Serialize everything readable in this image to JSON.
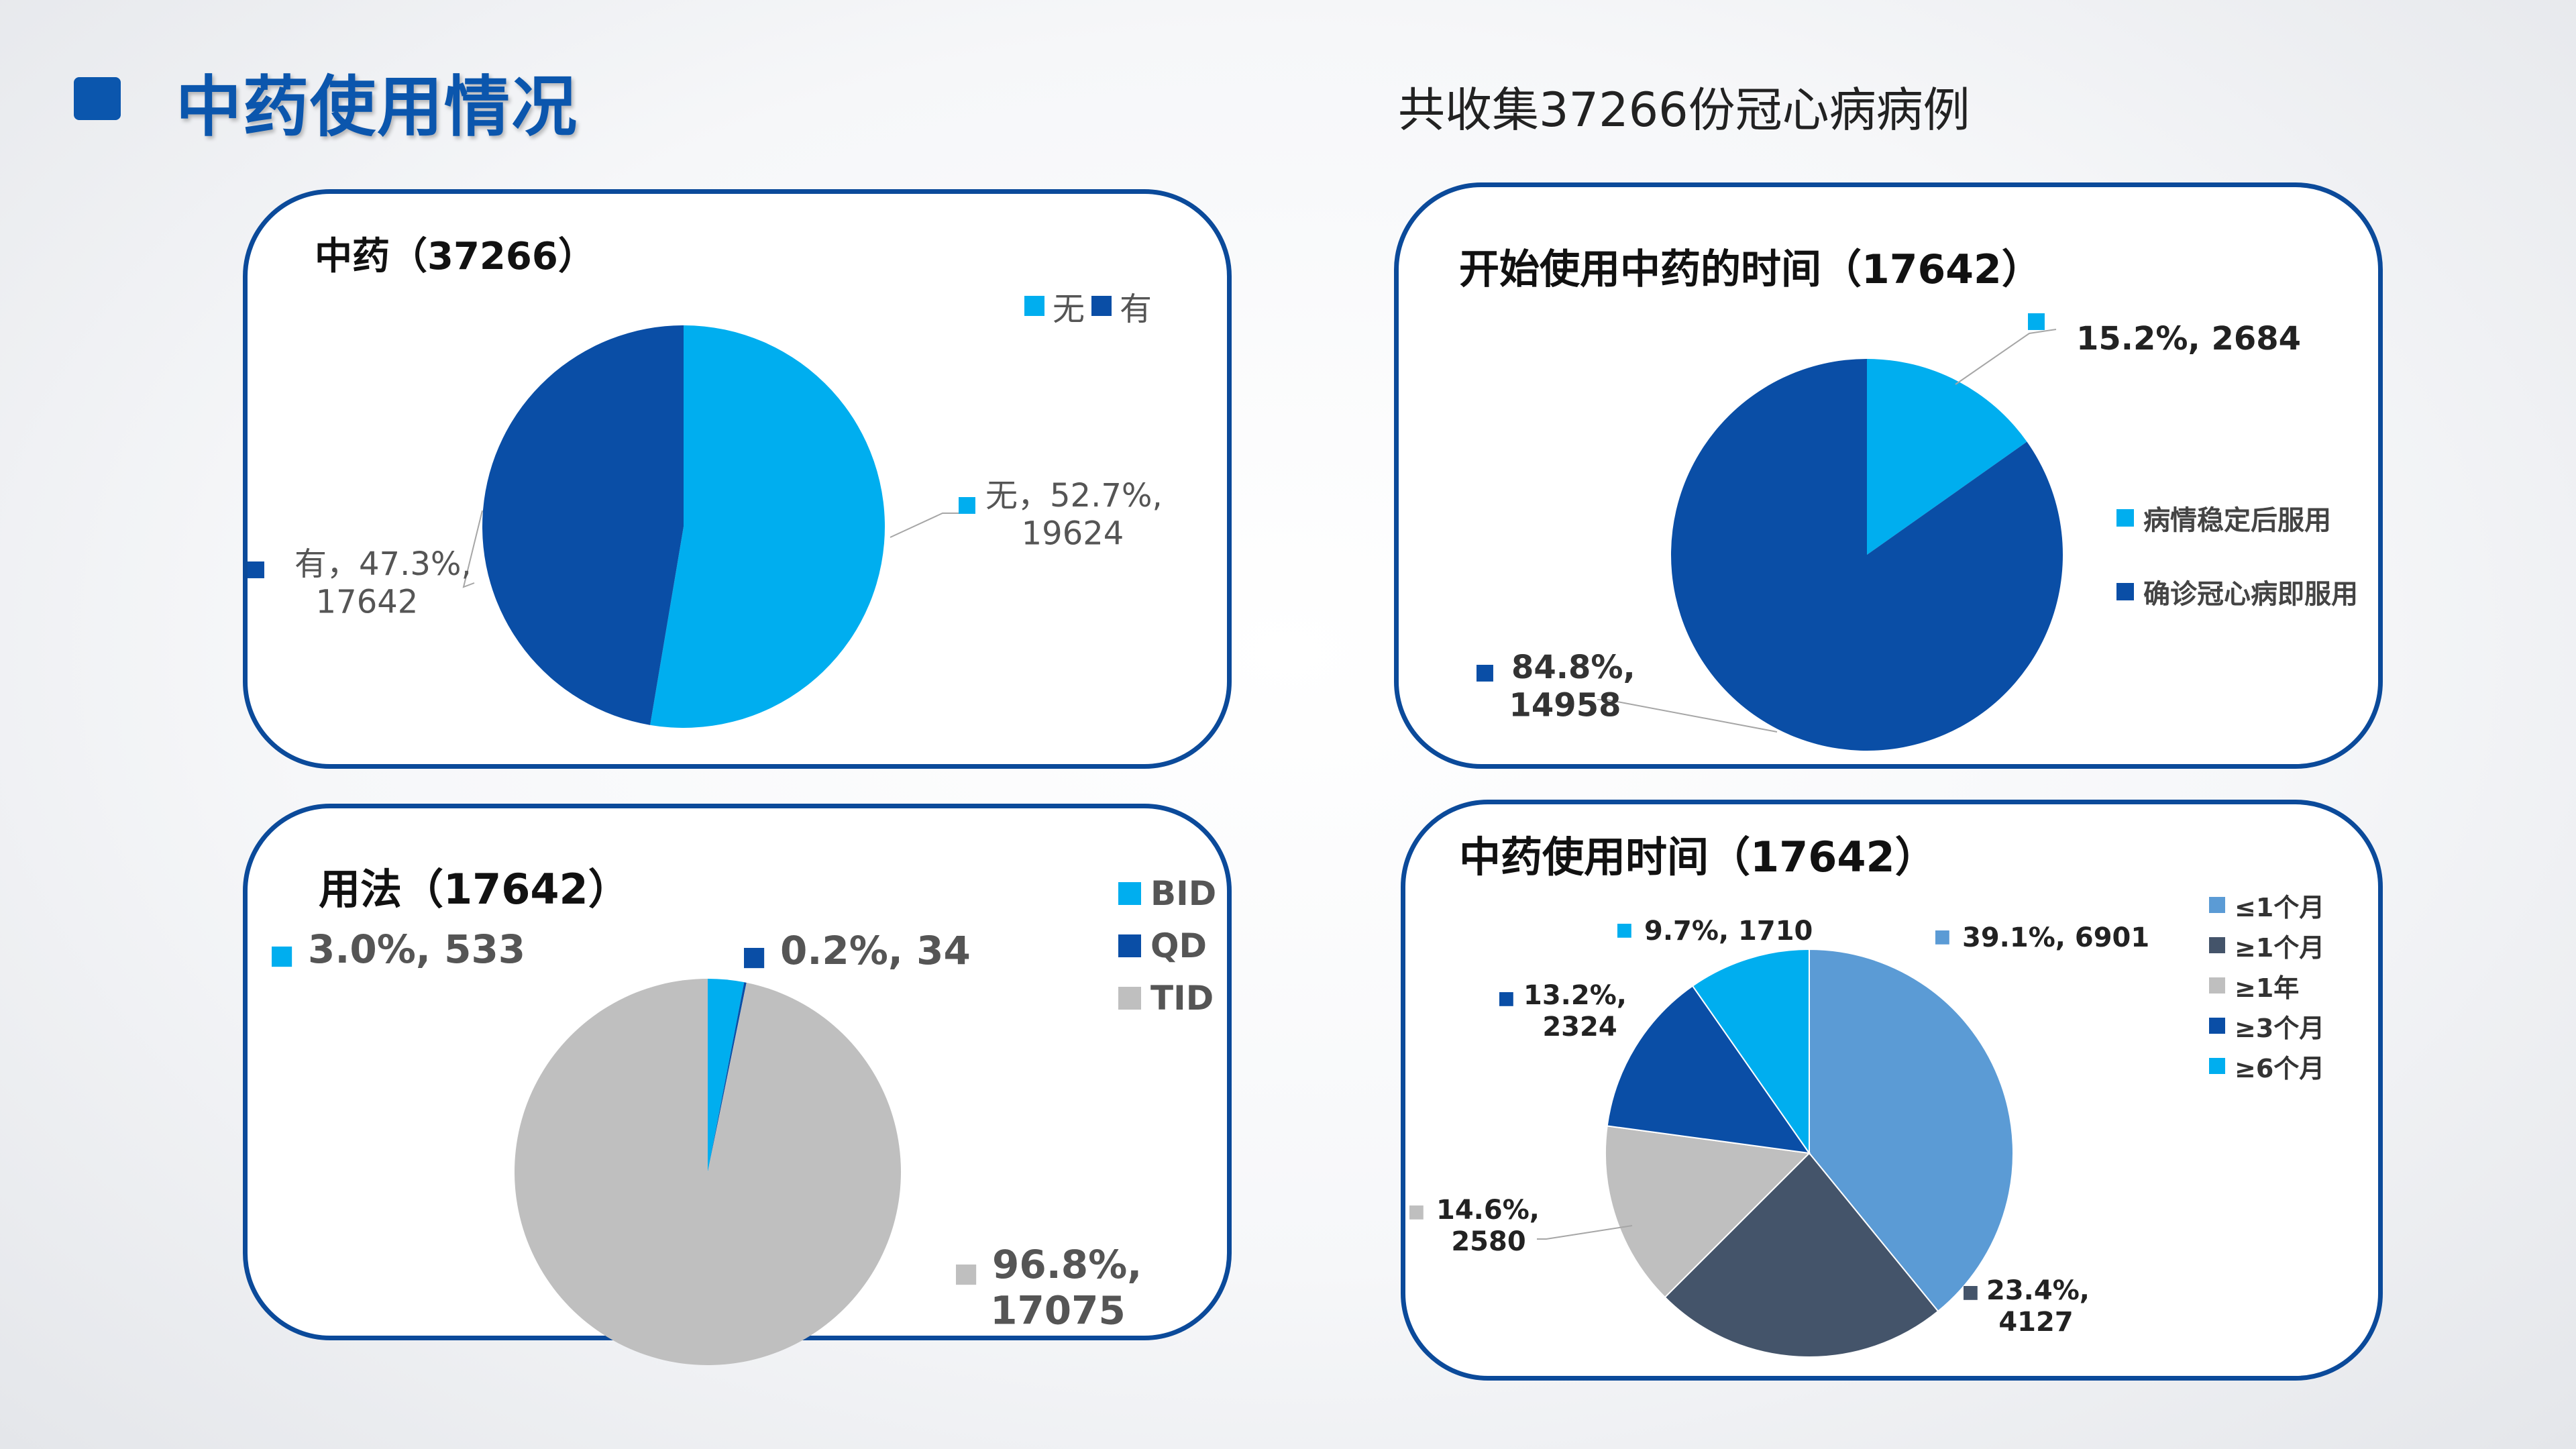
{
  "page": {
    "title": "中药使用情况",
    "subtitle": "共收集37266份冠心病病例"
  },
  "colors": {
    "accent": "#0b56ad",
    "border": "#0b4a9a",
    "light_blue": "#00aeef",
    "dark_blue": "#0a4ea6",
    "gray": "#bfbfbf",
    "steel_blue": "#5b9bd5",
    "slate": "#44546a"
  },
  "chart_data": [
    {
      "type": "pie",
      "title": "中药（37266）",
      "legend": {
        "placement": "top-right",
        "entries": [
          "无",
          "有"
        ]
      },
      "slices": [
        {
          "name": "无",
          "value": 19624,
          "percent": 52.7,
          "color": "#00aeef",
          "label": [
            "无，52.7%,",
            "19624"
          ]
        },
        {
          "name": "有",
          "value": 17642,
          "percent": 47.3,
          "color": "#0a4ea6",
          "label": [
            "有，47.3%,",
            "17642"
          ]
        }
      ]
    },
    {
      "type": "pie",
      "title": "开始使用中药的时间（17642）",
      "legend": {
        "placement": "right",
        "entries": [
          "病情稳定后服用",
          "确诊冠心病即服用"
        ]
      },
      "slices": [
        {
          "name": "病情稳定后服用",
          "value": 2684,
          "percent": 15.2,
          "color": "#00aeef",
          "label": [
            "15.2%, 2684"
          ]
        },
        {
          "name": "确诊冠心病即服用",
          "value": 14958,
          "percent": 84.8,
          "color": "#0a4ea6",
          "label": [
            "84.8%,",
            "14958"
          ]
        }
      ]
    },
    {
      "type": "pie",
      "title": "用法（17642）",
      "legend": {
        "placement": "top-right",
        "entries": [
          "BID",
          "QD",
          "TID"
        ]
      },
      "slices": [
        {
          "name": "BID",
          "value": 533,
          "percent": 3.0,
          "color": "#00aeef",
          "label": [
            "3.0%, 533"
          ]
        },
        {
          "name": "QD",
          "value": 34,
          "percent": 0.2,
          "color": "#0a4ea6",
          "label": [
            "0.2%, 34"
          ]
        },
        {
          "name": "TID",
          "value": 17075,
          "percent": 96.8,
          "color": "#bfbfbf",
          "label": [
            "96.8%,",
            "17075"
          ]
        }
      ]
    },
    {
      "type": "pie",
      "title": "中药使用时间（17642）",
      "legend": {
        "placement": "top-right",
        "entries": [
          "≤1个月",
          "≥1个月",
          "≥1年",
          "≥3个月",
          "≥6个月"
        ]
      },
      "slices": [
        {
          "name": "≤1个月",
          "value": 6901,
          "percent": 39.1,
          "color": "#5b9bd5",
          "label": [
            "39.1%, 6901"
          ]
        },
        {
          "name": "≥1个月",
          "value": 4127,
          "percent": 23.4,
          "color": "#44546a",
          "label": [
            "23.4%,",
            "4127"
          ]
        },
        {
          "name": "≥1年",
          "value": 2580,
          "percent": 14.6,
          "color": "#bfbfbf",
          "label": [
            "14.6%,",
            "2580"
          ]
        },
        {
          "name": "≥3个月",
          "value": 2324,
          "percent": 13.2,
          "color": "#0a4ea6",
          "label": [
            "13.2%,",
            "2324"
          ]
        },
        {
          "name": "≥6个月",
          "value": 1710,
          "percent": 9.7,
          "color": "#00aeef",
          "label": [
            "9.7%, 1710"
          ]
        }
      ]
    }
  ]
}
